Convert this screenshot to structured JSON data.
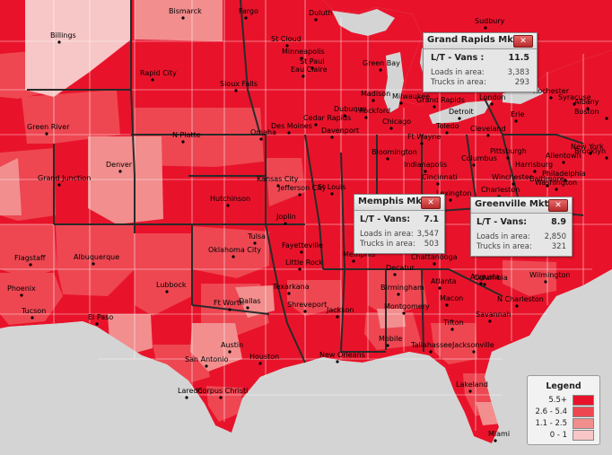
{
  "palette": {
    "high": "#e8132a",
    "mid": "#ee4752",
    "low": "#f28e8e",
    "lowest": "#f7c6c6",
    "water": "#d4d4d4",
    "border": "#ffffff",
    "state_border": "#2a2a2a"
  },
  "cities": [
    {
      "name": "Bismarck"
    },
    {
      "name": "Fargo"
    },
    {
      "name": "Duluth"
    },
    {
      "name": "Sudbury"
    },
    {
      "name": "Billings"
    },
    {
      "name": "St Cloud"
    },
    {
      "name": "Minneapolis"
    },
    {
      "name": "St Paul"
    },
    {
      "name": "Eau Claire"
    },
    {
      "name": "Green Bay"
    },
    {
      "name": "Rapid City"
    },
    {
      "name": "Sioux Falls"
    },
    {
      "name": "Madison"
    },
    {
      "name": "Milwaukee"
    },
    {
      "name": "Grand Rapids"
    },
    {
      "name": "London"
    },
    {
      "name": "Rochester"
    },
    {
      "name": "Syracuse"
    },
    {
      "name": "Green River"
    },
    {
      "name": "N Platte"
    },
    {
      "name": "Omaha"
    },
    {
      "name": "Des Moines"
    },
    {
      "name": "Cedar Rapids"
    },
    {
      "name": "Dubuque"
    },
    {
      "name": "Rockford"
    },
    {
      "name": "Chicago"
    },
    {
      "name": "Detroit"
    },
    {
      "name": "Toledo"
    },
    {
      "name": "Cleveland"
    },
    {
      "name": "Erie"
    },
    {
      "name": "Albany"
    },
    {
      "name": "Boston"
    },
    {
      "name": "Denver"
    },
    {
      "name": "Grand Junction"
    },
    {
      "name": "Davenport"
    },
    {
      "name": "Ft Wayne"
    },
    {
      "name": "Bloomington"
    },
    {
      "name": "Columbus"
    },
    {
      "name": "Pittsburgh"
    },
    {
      "name": "Harrisburg"
    },
    {
      "name": "Allentown"
    },
    {
      "name": "New York"
    },
    {
      "name": "Brooklyn"
    },
    {
      "name": "Philadelphia"
    },
    {
      "name": "Baltimore"
    },
    {
      "name": "Washington"
    },
    {
      "name": "Winchester"
    },
    {
      "name": "Kansas City"
    },
    {
      "name": "Jefferson City"
    },
    {
      "name": "St Louis"
    },
    {
      "name": "Indianapolis"
    },
    {
      "name": "Cincinnati"
    },
    {
      "name": "Lexington"
    },
    {
      "name": "Charleston"
    },
    {
      "name": "Hutchinson"
    },
    {
      "name": "Joplin"
    },
    {
      "name": "Tulsa"
    },
    {
      "name": "Fayetteville"
    },
    {
      "name": "Oklahoma City"
    },
    {
      "name": "Little Rock"
    },
    {
      "name": "Memphis"
    },
    {
      "name": "Chattanooga"
    },
    {
      "name": "Decatur"
    },
    {
      "name": "Birmingham"
    },
    {
      "name": "Atlanta"
    },
    {
      "name": "Macon"
    },
    {
      "name": "Augusta"
    },
    {
      "name": "Columbia"
    },
    {
      "name": "Wilmington"
    },
    {
      "name": "N Charleston"
    },
    {
      "name": "Savannah"
    },
    {
      "name": "Tifton"
    },
    {
      "name": "Flagstaff"
    },
    {
      "name": "Albuquerque"
    },
    {
      "name": "Lubbock"
    },
    {
      "name": "Phoenix"
    },
    {
      "name": "Tucson"
    },
    {
      "name": "El Paso"
    },
    {
      "name": "Ft Worth"
    },
    {
      "name": "Dallas"
    },
    {
      "name": "Texarkana"
    },
    {
      "name": "Shreveport"
    },
    {
      "name": "Jackson"
    },
    {
      "name": "Montgomery"
    },
    {
      "name": "Mobile"
    },
    {
      "name": "Tallahassee"
    },
    {
      "name": "Jacksonville"
    },
    {
      "name": "Austin"
    },
    {
      "name": "Houston"
    },
    {
      "name": "New Orleans"
    },
    {
      "name": "San Antonio"
    },
    {
      "name": "Laredo"
    },
    {
      "name": "Corpus Christi"
    },
    {
      "name": "Lakeland"
    },
    {
      "name": "Miami"
    }
  ],
  "popups": [
    {
      "title": "Grand Rapids Mkt",
      "close": "✕",
      "main_label": "L/T - Vans :",
      "main_value": "11.5",
      "loads_label": "Loads in area:",
      "loads_value": "3,383",
      "trucks_label": "Trucks in area:",
      "trucks_value": "293"
    },
    {
      "title": "Memphis Mkt",
      "close": "✕",
      "main_label": "L/T - Vans:",
      "main_value": "7.1",
      "loads_label": "Loads in area:",
      "loads_value": "3,547",
      "trucks_label": "Trucks in area:",
      "trucks_value": "503"
    },
    {
      "title": "Greenville Mkt",
      "close": "✕",
      "main_label": "L/T - Vans:",
      "main_value": "8.9",
      "loads_label": "Loads in area:",
      "loads_value": "2,850",
      "trucks_label": "Trucks in area:",
      "trucks_value": "321"
    }
  ],
  "legend": {
    "title": "Legend",
    "items": [
      {
        "label": "5.5+",
        "color": "#e8132a"
      },
      {
        "label": "2.6 - 5.4",
        "color": "#ee4752"
      },
      {
        "label": "1.1 - 2.5",
        "color": "#f28e8e"
      },
      {
        "label": "0 - 1",
        "color": "#f7c6c6"
      }
    ]
  }
}
